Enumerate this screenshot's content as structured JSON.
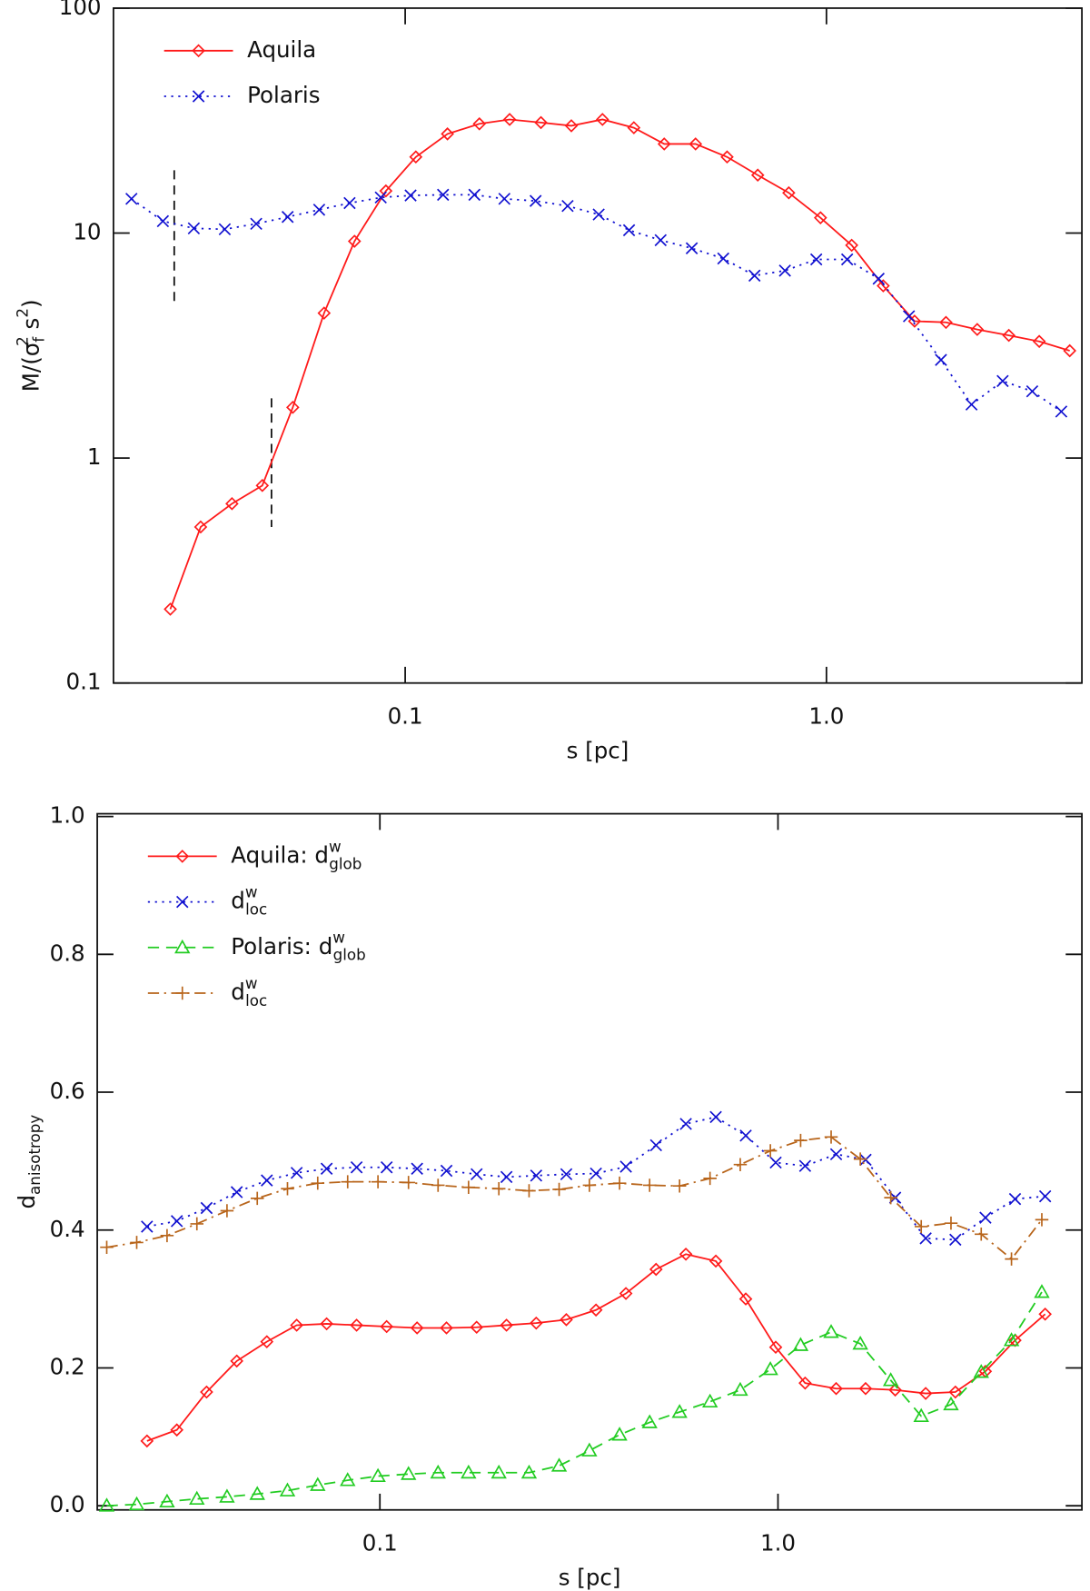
{
  "chart_data": [
    {
      "type": "line",
      "xscale": "log",
      "yscale": "log",
      "xlim": [
        0.0203,
        4.04
      ],
      "ylim": [
        0.1,
        100
      ],
      "xticks": [
        0.1,
        {
          "value": 1,
          "label": "1.0"
        }
      ],
      "yticks": [
        0.1,
        1,
        10,
        100
      ],
      "xlabel": "s [pc]",
      "ylabel": [
        "M/(σ",
        "f",
        "2",
        " s",
        "2",
        ")"
      ],
      "legend": "upper left",
      "series": [
        {
          "name": "Aquila",
          "color": "#ff1a1a",
          "linestyle": "solid",
          "marker": "diamond",
          "x": [
            0.0277,
            0.0327,
            0.0388,
            0.0458,
            0.0541,
            0.0642,
            0.0758,
            0.09,
            0.106,
            0.126,
            0.15,
            0.177,
            0.21,
            0.248,
            0.294,
            0.349,
            0.412,
            0.489,
            0.581,
            0.687,
            0.814,
            0.968,
            1.148,
            1.364,
            1.619,
            1.922,
            2.28,
            2.71,
            3.2,
            3.78
          ],
          "values": [
            0.213,
            0.494,
            0.627,
            0.755,
            1.68,
            4.41,
            9.2,
            15.4,
            21.8,
            27.6,
            30.6,
            32.0,
            31.0,
            30.0,
            32.0,
            29.4,
            24.9,
            24.9,
            21.8,
            18.1,
            15.1,
            11.7,
            8.83,
            5.83,
            4.06,
            4.01,
            3.73,
            3.51,
            3.3,
            3.0
          ]
        },
        {
          "name": "Polaris",
          "color": "#1010d0",
          "linestyle": "dotted",
          "marker": "x",
          "x": [
            0.0224,
            0.0266,
            0.0315,
            0.0373,
            0.0443,
            0.0526,
            0.0625,
            0.0738,
            0.0875,
            0.103,
            0.123,
            0.146,
            0.172,
            0.204,
            0.243,
            0.288,
            0.34,
            0.404,
            0.479,
            0.569,
            0.675,
            0.797,
            0.946,
            1.12,
            1.33,
            1.57,
            1.87,
            2.21,
            2.62,
            3.08,
            3.61
          ],
          "values": [
            14.2,
            11.3,
            10.5,
            10.4,
            11.0,
            11.8,
            12.7,
            13.6,
            14.4,
            14.7,
            14.8,
            14.8,
            14.2,
            13.9,
            13.2,
            12.1,
            10.3,
            9.3,
            8.56,
            7.71,
            6.47,
            6.81,
            7.64,
            7.64,
            6.27,
            4.27,
            2.73,
            1.73,
            2.2,
            1.98,
            1.61
          ]
        }
      ]
    },
    {
      "type": "line",
      "xscale": "log",
      "yscale": "linear",
      "xlim": [
        0.0195,
        5.8
      ],
      "ylim": [
        -0.006,
        1.004
      ],
      "xticks": [
        0.1,
        {
          "value": 1,
          "label": "1.0"
        }
      ],
      "yticks": [
        {
          "value": 0,
          "label": "0.0"
        },
        0.2,
        0.4,
        0.6,
        0.8,
        {
          "value": 1,
          "label": "1.0"
        }
      ],
      "xlabel": "s [pc]",
      "ylabel": [
        "d",
        "anisotropy"
      ],
      "legend": "upper left",
      "series": [
        {
          "name": [
            "Aquila: d",
            "w",
            "glob"
          ],
          "color": "#ff1a1a",
          "linestyle": "solid",
          "marker": "diamond",
          "x": [
            0.026,
            0.0309,
            0.0367,
            0.0437,
            0.052,
            0.0618,
            0.0735,
            0.0874,
            0.104,
            0.124,
            0.147,
            0.175,
            0.208,
            0.247,
            0.294,
            0.349,
            0.415,
            0.494,
            0.587,
            0.698,
            0.83,
            0.987,
            1.17,
            1.4,
            1.66,
            1.97,
            2.35,
            2.79,
            3.32,
            3.94,
            4.69
          ],
          "values": [
            0.094,
            0.11,
            0.165,
            0.21,
            0.238,
            0.262,
            0.264,
            0.262,
            0.26,
            0.258,
            0.258,
            0.259,
            0.262,
            0.265,
            0.27,
            0.284,
            0.308,
            0.343,
            0.365,
            0.355,
            0.3,
            0.23,
            0.178,
            0.17,
            0.17,
            0.168,
            0.163,
            0.165,
            0.195,
            0.24,
            0.278
          ]
        },
        {
          "name": [
            "d",
            "w",
            "loc"
          ],
          "color": "#1010d0",
          "linestyle": "dotted",
          "marker": "x",
          "x": [
            0.026,
            0.0309,
            0.0367,
            0.0437,
            0.052,
            0.0618,
            0.0735,
            0.0874,
            0.104,
            0.124,
            0.147,
            0.175,
            0.208,
            0.247,
            0.294,
            0.349,
            0.415,
            0.494,
            0.587,
            0.698,
            0.83,
            0.987,
            1.17,
            1.4,
            1.66,
            1.97,
            2.35,
            2.79,
            3.32,
            3.94,
            4.69
          ],
          "values": [
            0.405,
            0.413,
            0.432,
            0.455,
            0.472,
            0.483,
            0.489,
            0.491,
            0.491,
            0.489,
            0.486,
            0.481,
            0.477,
            0.479,
            0.481,
            0.482,
            0.492,
            0.523,
            0.554,
            0.564,
            0.537,
            0.498,
            0.493,
            0.51,
            0.502,
            0.447,
            0.388,
            0.386,
            0.418,
            0.445,
            0.449
          ]
        },
        {
          "name": [
            "Polaris: d",
            "w",
            "glob"
          ],
          "color": "#22cc22",
          "linestyle": "dashed",
          "marker": "triangle",
          "x": [
            0.0206,
            0.0245,
            0.0292,
            0.0347,
            0.0413,
            0.0492,
            0.0586,
            0.0698,
            0.083,
            0.0989,
            0.118,
            0.14,
            0.167,
            0.199,
            0.237,
            0.282,
            0.336,
            0.4,
            0.476,
            0.566,
            0.675,
            0.804,
            0.957,
            1.14,
            1.36,
            1.61,
            1.92,
            2.29,
            2.72,
            3.24,
            3.86,
            4.6
          ],
          "values": [
            0.0,
            0.002,
            0.006,
            0.01,
            0.013,
            0.017,
            0.022,
            0.03,
            0.037,
            0.043,
            0.046,
            0.048,
            0.048,
            0.048,
            0.048,
            0.058,
            0.08,
            0.103,
            0.121,
            0.136,
            0.151,
            0.168,
            0.198,
            0.233,
            0.252,
            0.235,
            0.182,
            0.13,
            0.147,
            0.194,
            0.24,
            0.31
          ]
        },
        {
          "name": [
            "d",
            "w",
            "loc"
          ],
          "color": "#b8651b",
          "linestyle": "dashdot",
          "marker": "plus",
          "x": [
            0.0206,
            0.0245,
            0.0292,
            0.0347,
            0.0413,
            0.0492,
            0.0586,
            0.0698,
            0.083,
            0.0989,
            0.118,
            0.14,
            0.167,
            0.199,
            0.237,
            0.282,
            0.336,
            0.4,
            0.476,
            0.566,
            0.675,
            0.804,
            0.957,
            1.14,
            1.36,
            1.61,
            1.92,
            2.29,
            2.72,
            3.24,
            3.86,
            4.6
          ],
          "values": [
            0.375,
            0.382,
            0.392,
            0.409,
            0.428,
            0.446,
            0.46,
            0.468,
            0.47,
            0.47,
            0.469,
            0.465,
            0.462,
            0.46,
            0.457,
            0.459,
            0.465,
            0.468,
            0.465,
            0.464,
            0.475,
            0.495,
            0.515,
            0.53,
            0.535,
            0.503,
            0.447,
            0.405,
            0.41,
            0.394,
            0.358,
            0.415
          ]
        }
      ]
    }
  ]
}
